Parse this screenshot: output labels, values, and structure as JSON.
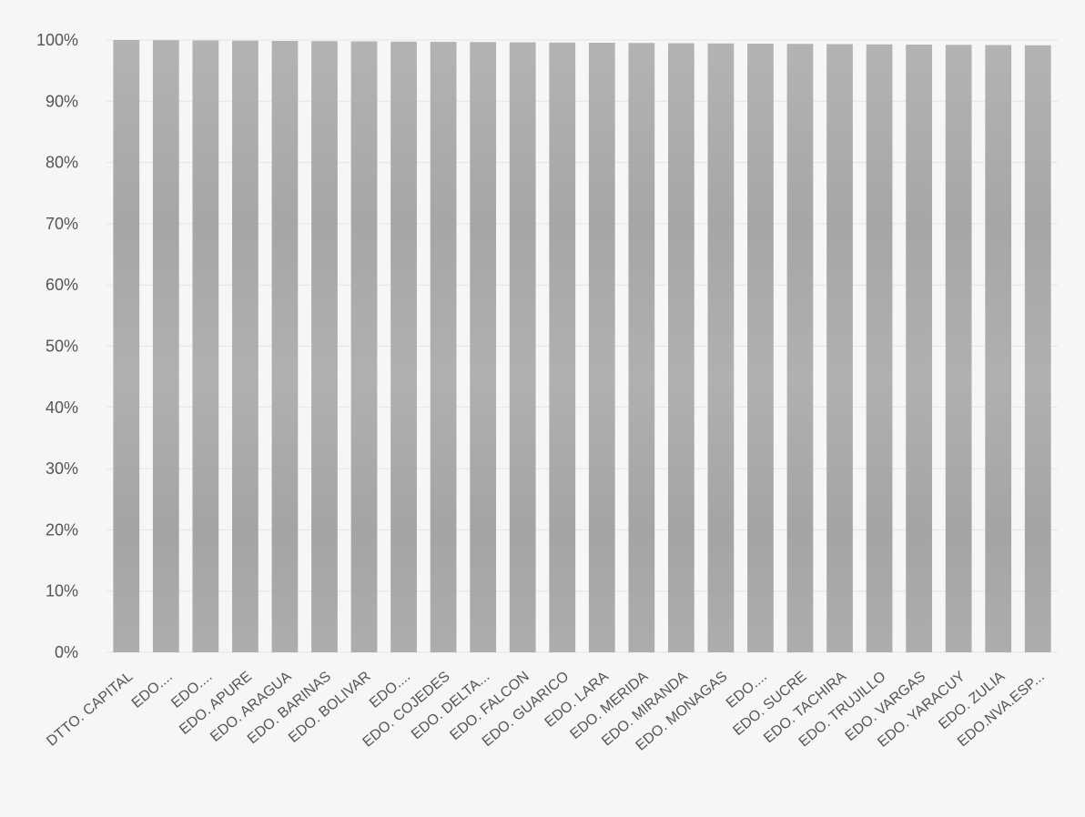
{
  "chart_data": {
    "type": "bar",
    "title": "",
    "xlabel": "",
    "ylabel": "",
    "ylim": [
      0,
      100
    ],
    "grid": true,
    "legend": "none",
    "bar_color": "#a9a9a9",
    "y_ticks": [
      "0%",
      "10%",
      "20%",
      "30%",
      "40%",
      "50%",
      "60%",
      "70%",
      "80%",
      "90%",
      "100%"
    ],
    "categories": [
      "DTTO. CAPITAL",
      "EDO....",
      "EDO....",
      "EDO. APURE",
      "EDO. ARAGUA",
      "EDO. BARINAS",
      "EDO. BOLIVAR",
      "EDO....",
      "EDO. COJEDES",
      "EDO. DELTA...",
      "EDO. FALCON",
      "EDO. GUARICO",
      "EDO. LARA",
      "EDO. MERIDA",
      "EDO. MIRANDA",
      "EDO. MONAGAS",
      "EDO....",
      "EDO. SUCRE",
      "EDO. TACHIRA",
      "EDO. TRUJILLO",
      "EDO. VARGAS",
      "EDO. YARACUY",
      "EDO. ZULIA",
      "EDO.NVA.ESP..."
    ],
    "values": [
      100,
      100,
      100,
      100,
      100,
      100,
      100,
      100,
      100,
      100,
      100,
      100,
      100,
      100,
      100,
      100,
      100,
      100,
      100,
      100,
      100,
      100,
      100,
      100
    ]
  }
}
